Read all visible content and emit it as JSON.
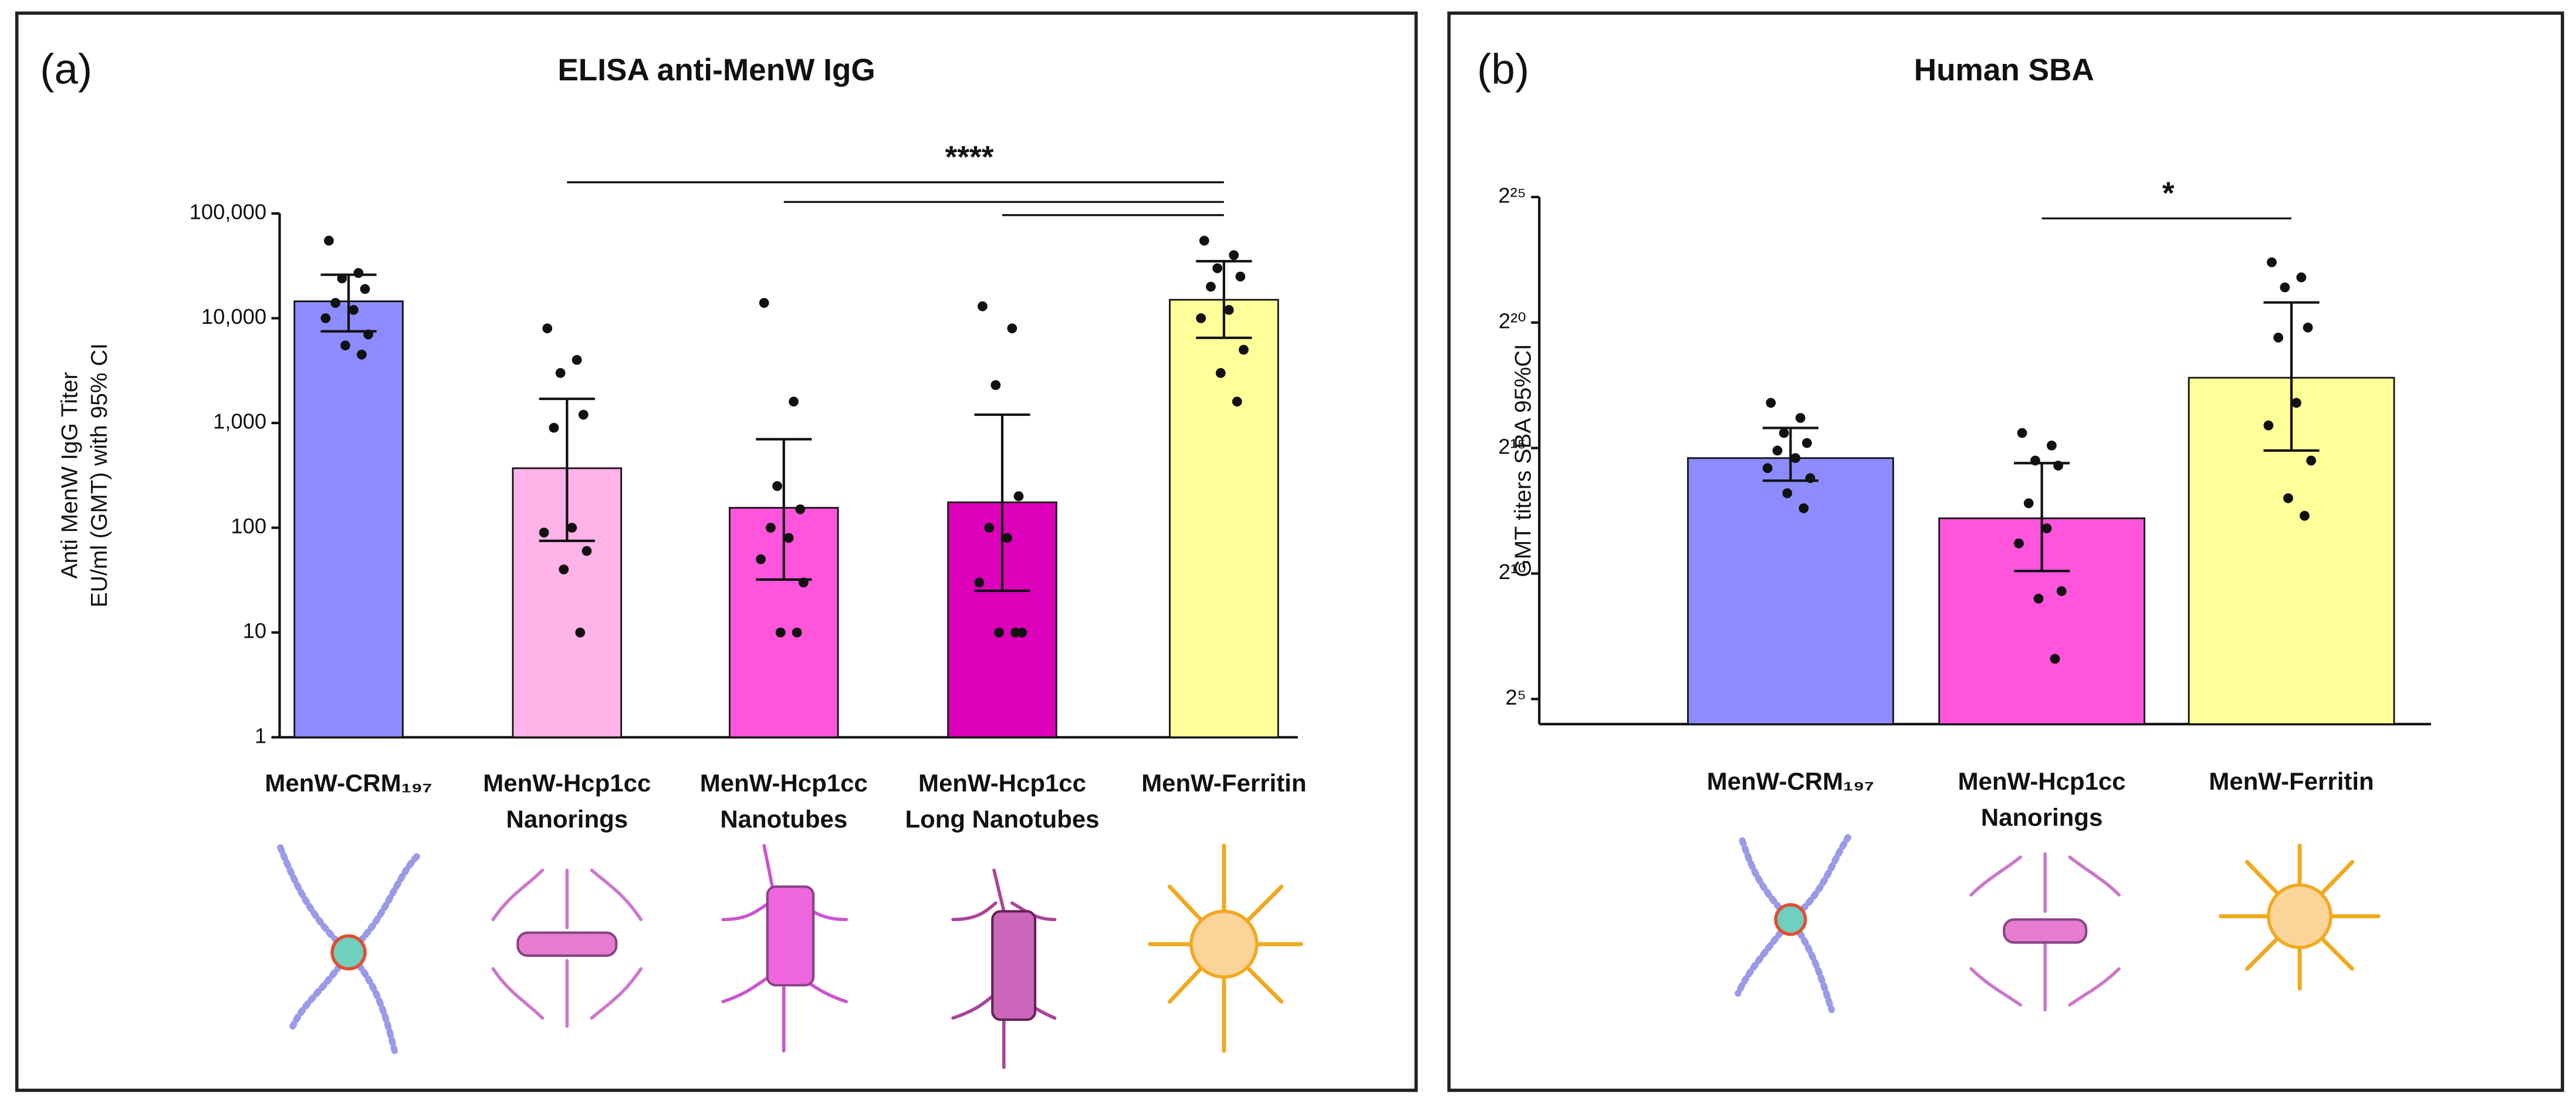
{
  "chart_data": [
    {
      "type": "bar",
      "panel": "(a)",
      "title": "ELISA anti-MenW IgG",
      "y_label": [
        "Anti MenW IgG Titer",
        "EU/ml (GMT) with 95% CI"
      ],
      "categories": [
        [
          "MenW-CRM₁₉₇"
        ],
        [
          "MenW-Hcp1cc",
          "Nanorings"
        ],
        [
          "MenW-Hcp1cc",
          "Nanotubes"
        ],
        [
          "MenW-Hcp1cc",
          "Long Nanotubes"
        ],
        [
          "MenW-Ferritin"
        ]
      ],
      "values": [
        14500,
        370,
        155,
        175,
        15000
      ],
      "ci_low": [
        7500,
        75,
        32,
        25,
        6500
      ],
      "ci_high": [
        26000,
        1700,
        700,
        1200,
        35000
      ],
      "points": [
        [
          55000,
          27000,
          24000,
          19000,
          14000,
          12000,
          10000,
          7000,
          5500,
          4500
        ],
        [
          8000,
          4000,
          3000,
          1200,
          900,
          100,
          90,
          60,
          40,
          10
        ],
        [
          14000,
          1600,
          250,
          150,
          100,
          80,
          50,
          30,
          10,
          10
        ],
        [
          13000,
          8000,
          2300,
          200,
          100,
          80,
          30,
          10,
          10,
          10
        ],
        [
          55000,
          40000,
          30000,
          25000,
          20000,
          12000,
          10000,
          5000,
          3000,
          1600
        ]
      ],
      "colors": [
        "#8c8cff",
        "#ffb3e8",
        "#ff55dd",
        "#dd00bb",
        "#ffff99"
      ],
      "log_scale": true,
      "ylim": [
        1,
        100000
      ],
      "yticks": [
        1,
        10,
        {
          "value": 100,
          "label": "100"
        },
        {
          "value": 1000,
          "label": "1,000"
        },
        {
          "value": 10000,
          "label": "10,000"
        },
        {
          "value": 100000,
          "label": "100,000"
        }
      ],
      "significance": {
        "label": "****",
        "comparisons": [
          [
            1,
            4
          ],
          [
            2,
            4
          ],
          [
            3,
            4
          ]
        ]
      }
    },
    {
      "type": "bar",
      "panel": "(b)",
      "title": "Human SBA",
      "y_label": [
        "GMT titers SBA 95%CI"
      ],
      "categories": [
        [
          "MenW-CRM₁₉₇"
        ],
        [
          "MenW-Hcp1cc",
          "Nanorings"
        ],
        [
          "MenW-Ferritin"
        ]
      ],
      "values": [
        14.6,
        12.2,
        17.8
      ],
      "ci_low": [
        13.7,
        10.1,
        14.9
      ],
      "ci_high": [
        15.8,
        14.4,
        20.8
      ],
      "points": [
        [
          16.8,
          16.2,
          15.6,
          15.2,
          14.9,
          14.6,
          14.2,
          13.8,
          13.2,
          12.6
        ],
        [
          15.6,
          15.1,
          14.5,
          14.3,
          12.8,
          11.8,
          11.2,
          9.3,
          9.0,
          6.6
        ],
        [
          22.4,
          21.8,
          21.4,
          19.8,
          19.4,
          16.8,
          15.9,
          14.5,
          13.0,
          12.3
        ]
      ],
      "colors": [
        "#8c8cff",
        "#ff55dd",
        "#ffff99"
      ],
      "log_scale": false,
      "ylim": [
        4,
        25
      ],
      "yticks": [
        {
          "value": 5,
          "label": "2⁵"
        },
        {
          "value": 10,
          "label": "2¹⁰"
        },
        {
          "value": 15,
          "label": "2¹⁵"
        },
        {
          "value": 20,
          "label": "2²⁰"
        },
        {
          "value": 25,
          "label": "2²⁵"
        }
      ],
      "significance": {
        "label": "*",
        "comparisons": [
          [
            1,
            2
          ]
        ]
      }
    }
  ]
}
